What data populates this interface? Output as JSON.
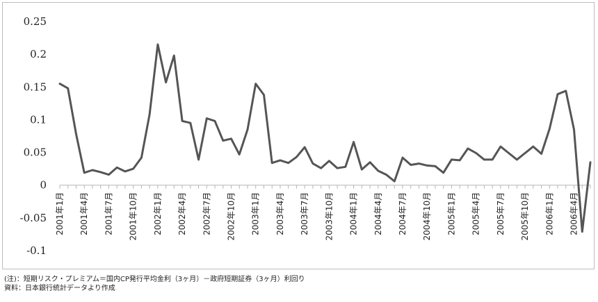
{
  "chart_data": {
    "type": "line",
    "title": "",
    "xlabel": "",
    "ylabel": "",
    "ylim": [
      -0.1,
      0.25
    ],
    "yticks": [
      0.25,
      0.2,
      0.15,
      0.1,
      0.05,
      0,
      -0.05,
      -0.1
    ],
    "ytick_labels": [
      "0.25",
      "0.2",
      "0.15",
      "0.1",
      "0.05",
      "0",
      "-0.05",
      "-0.1"
    ],
    "grid": false,
    "line_color": "#555555",
    "x_labels": [
      "2001年1月",
      "2001年4月",
      "2001年7月",
      "2001年10月",
      "2002年1月",
      "2002年4月",
      "2002年7月",
      "2002年10月",
      "2003年1月",
      "2003年4月",
      "2003年7月",
      "2003年10月",
      "2004年1月",
      "2004年4月",
      "2004年7月",
      "2004年10月",
      "2005年1月",
      "2005年4月",
      "2005年7月",
      "2005年10月",
      "2006年1月",
      "2006年4月"
    ],
    "series": [
      {
        "values": [
          0.155,
          0.148,
          0.078,
          0.019,
          0.023,
          0.02,
          0.016,
          0.027,
          0.021,
          0.025,
          0.042,
          0.108,
          0.215,
          0.157,
          0.198,
          0.098,
          0.095,
          0.039,
          0.102,
          0.098,
          0.068,
          0.071,
          0.047,
          0.085,
          0.155,
          0.138,
          0.034,
          0.038,
          0.034,
          0.043,
          0.058,
          0.033,
          0.026,
          0.037,
          0.026,
          0.028,
          0.066,
          0.024,
          0.035,
          0.022,
          0.016,
          0.006,
          0.042,
          0.031,
          0.033,
          0.03,
          0.029,
          0.019,
          0.039,
          0.038,
          0.056,
          0.049,
          0.039,
          0.039,
          0.059,
          0.049,
          0.039,
          0.049,
          0.059,
          0.048,
          0.086,
          0.139,
          0.144,
          0.085,
          -0.071,
          0.035
        ]
      }
    ]
  },
  "notes": {
    "line1": "(注)：短期リスク・プレミアム＝国内CP発行平均金利（3ヶ月）－政府短期証券（3ヶ月）利回り",
    "line2": "資料：日本銀行統計データより作成"
  }
}
